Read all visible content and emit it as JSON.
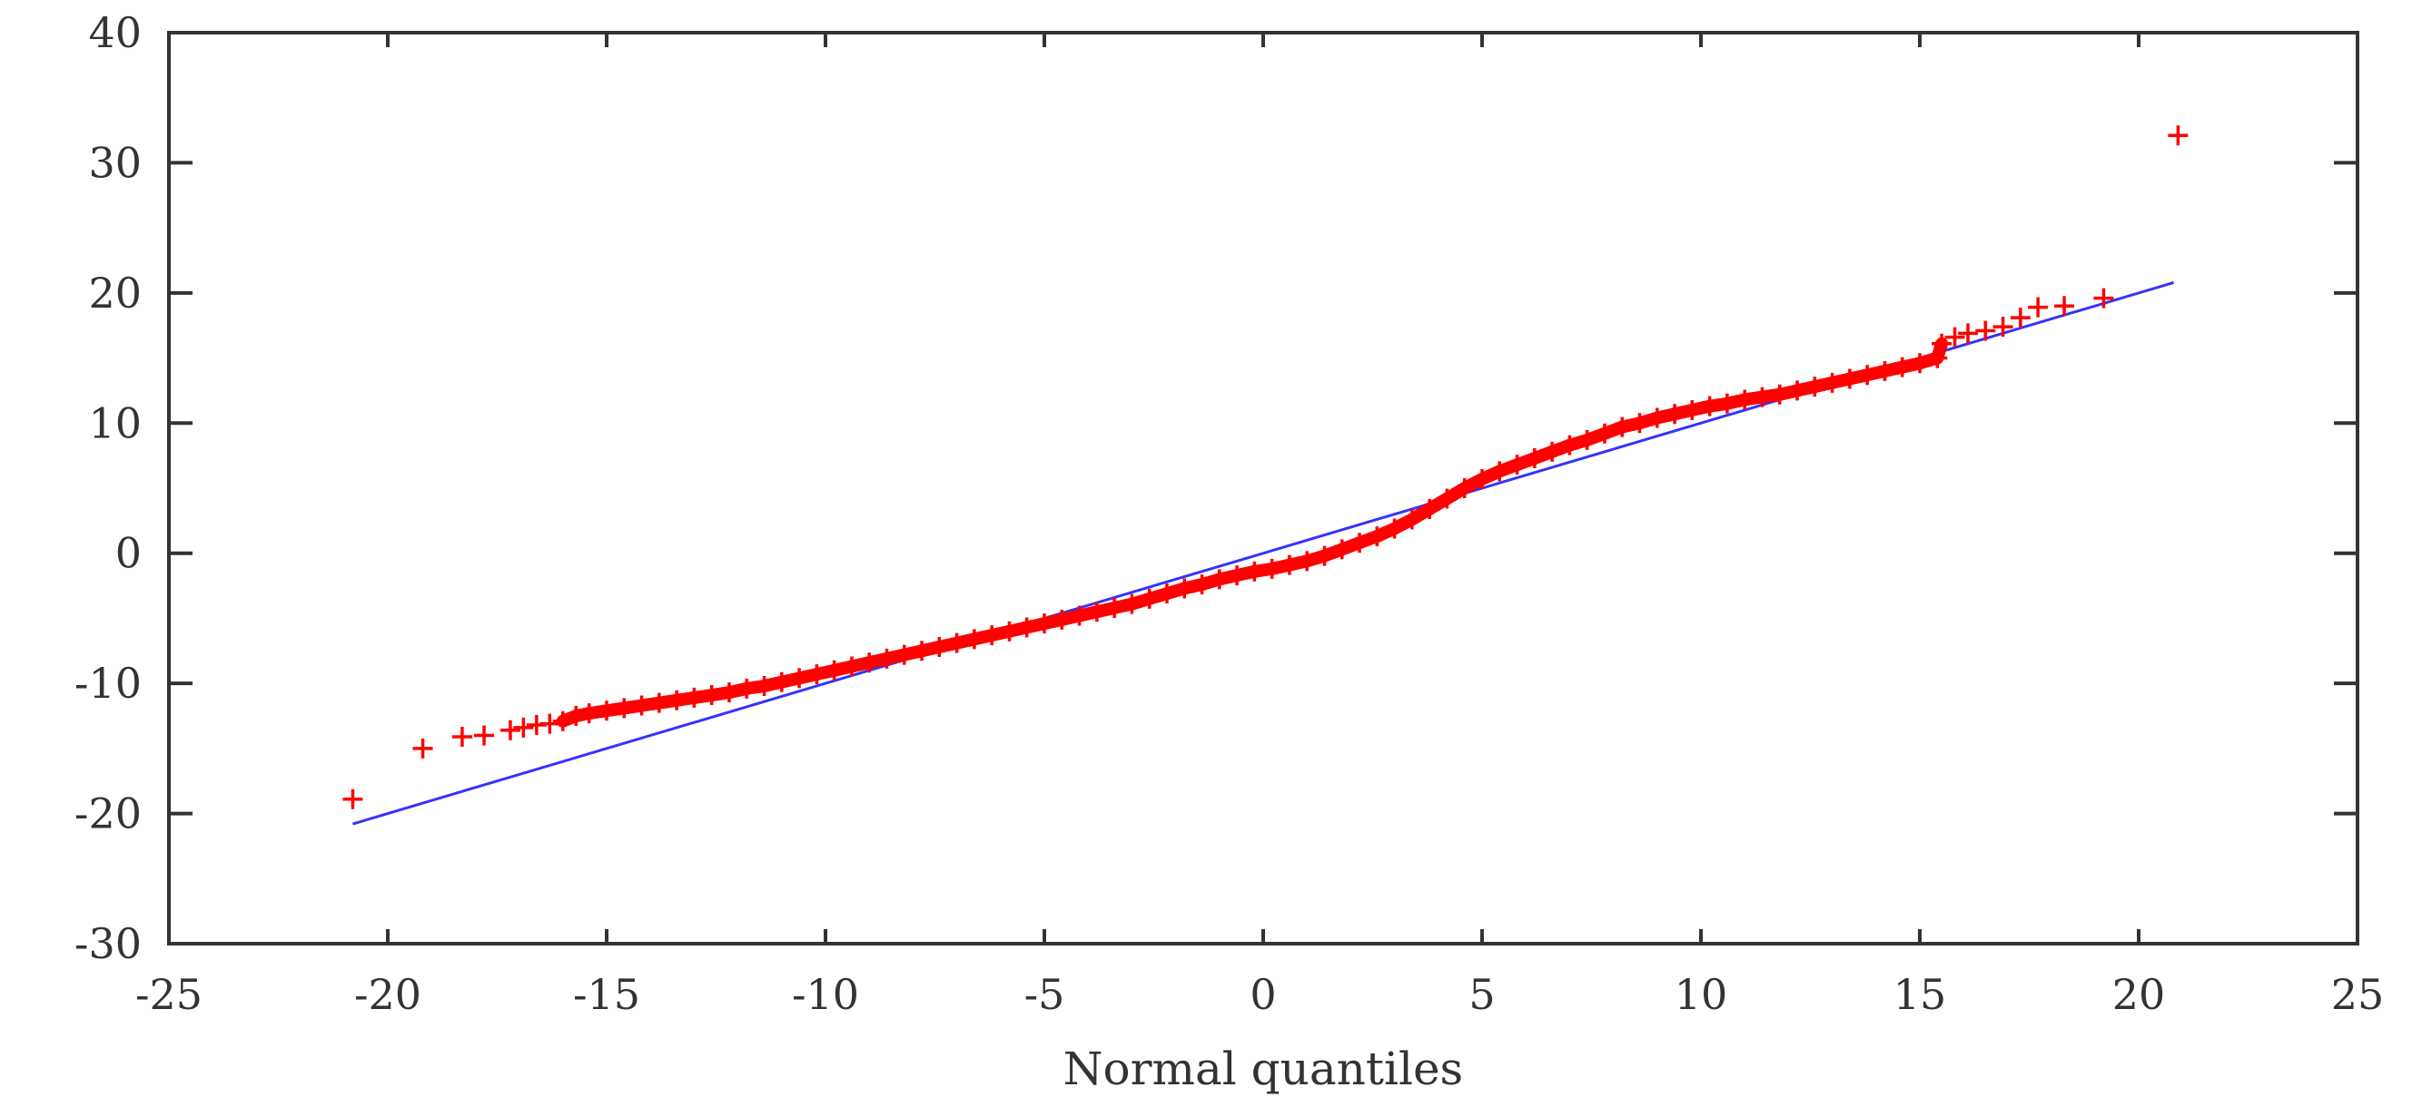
{
  "chart_data": {
    "type": "scatter",
    "title": "",
    "xlabel": "Normal quantiles",
    "ylabel": "",
    "xlim": [
      -25,
      25
    ],
    "ylim": [
      -30,
      40
    ],
    "xticks": [
      -25,
      -20,
      -15,
      -10,
      -5,
      0,
      5,
      10,
      15,
      20,
      25
    ],
    "yticks": [
      -30,
      -20,
      -10,
      0,
      10,
      20,
      30,
      40
    ],
    "xtick_labels": [
      "-25",
      "-20",
      "-15",
      "-10",
      "-5",
      "0",
      "5",
      "10",
      "15",
      "20",
      "25"
    ],
    "ytick_labels": [
      "-30",
      "-20",
      "-10",
      "0",
      "10",
      "20",
      "30",
      "40"
    ],
    "grid": false,
    "legend": "none",
    "series": [
      {
        "kind": "points",
        "marker": "plus",
        "color": "#ff0000",
        "points": [
          [
            -20.8,
            -18.9
          ],
          [
            -19.2,
            -15.0
          ],
          [
            -18.3,
            -14.1
          ],
          [
            -17.8,
            -14.0
          ],
          [
            -17.2,
            -13.6
          ],
          [
            -16.9,
            -13.4
          ],
          [
            -16.6,
            -13.2
          ],
          [
            -16.3,
            -13.1
          ],
          [
            -16.0,
            -12.9
          ],
          [
            -15.7,
            -12.5
          ],
          [
            -15.4,
            -12.3
          ],
          [
            -15.0,
            -12.1
          ],
          [
            -14.6,
            -11.9
          ],
          [
            -14.2,
            -11.7
          ],
          [
            -13.8,
            -11.5
          ],
          [
            -13.4,
            -11.3
          ],
          [
            -13.0,
            -11.1
          ],
          [
            -12.6,
            -10.9
          ],
          [
            -12.2,
            -10.7
          ],
          [
            -11.8,
            -10.4
          ],
          [
            -11.4,
            -10.2
          ],
          [
            -11.0,
            -9.9
          ],
          [
            -10.6,
            -9.6
          ],
          [
            -10.2,
            -9.3
          ],
          [
            -9.8,
            -9.0
          ],
          [
            -9.4,
            -8.7
          ],
          [
            -9.0,
            -8.4
          ],
          [
            -8.6,
            -8.1
          ],
          [
            -8.2,
            -7.8
          ],
          [
            -7.8,
            -7.5
          ],
          [
            -7.4,
            -7.2
          ],
          [
            -7.0,
            -6.9
          ],
          [
            -6.6,
            -6.6
          ],
          [
            -6.2,
            -6.3
          ],
          [
            -5.8,
            -6.0
          ],
          [
            -5.4,
            -5.7
          ],
          [
            -5.0,
            -5.4
          ],
          [
            -4.6,
            -5.1
          ],
          [
            -4.2,
            -4.8
          ],
          [
            -3.8,
            -4.5
          ],
          [
            -3.4,
            -4.2
          ],
          [
            -3.0,
            -3.9
          ],
          [
            -2.6,
            -3.5
          ],
          [
            -2.2,
            -3.1
          ],
          [
            -1.8,
            -2.7
          ],
          [
            -1.4,
            -2.4
          ],
          [
            -1.0,
            -2.0
          ],
          [
            -0.6,
            -1.7
          ],
          [
            -0.2,
            -1.4
          ],
          [
            0.2,
            -1.2
          ],
          [
            0.6,
            -0.9
          ],
          [
            1.0,
            -0.6
          ],
          [
            1.4,
            -0.2
          ],
          [
            1.8,
            0.3
          ],
          [
            2.2,
            0.8
          ],
          [
            2.6,
            1.3
          ],
          [
            3.0,
            1.9
          ],
          [
            3.4,
            2.6
          ],
          [
            3.8,
            3.4
          ],
          [
            4.2,
            4.2
          ],
          [
            4.6,
            5.0
          ],
          [
            5.0,
            5.7
          ],
          [
            5.4,
            6.3
          ],
          [
            5.8,
            6.8
          ],
          [
            6.2,
            7.3
          ],
          [
            6.6,
            7.8
          ],
          [
            7.0,
            8.3
          ],
          [
            7.4,
            8.7
          ],
          [
            7.8,
            9.2
          ],
          [
            8.2,
            9.7
          ],
          [
            8.6,
            10.0
          ],
          [
            9.0,
            10.4
          ],
          [
            9.4,
            10.7
          ],
          [
            9.8,
            11.0
          ],
          [
            10.2,
            11.3
          ],
          [
            10.6,
            11.5
          ],
          [
            11.0,
            11.8
          ],
          [
            11.4,
            12.0
          ],
          [
            11.8,
            12.2
          ],
          [
            12.2,
            12.5
          ],
          [
            12.6,
            12.8
          ],
          [
            13.0,
            13.1
          ],
          [
            13.4,
            13.4
          ],
          [
            13.8,
            13.7
          ],
          [
            14.2,
            14.0
          ],
          [
            14.6,
            14.3
          ],
          [
            15.0,
            14.6
          ],
          [
            15.4,
            15.0
          ],
          [
            15.5,
            16.1
          ],
          [
            15.8,
            16.6
          ],
          [
            16.1,
            16.9
          ],
          [
            16.5,
            17.1
          ],
          [
            16.9,
            17.4
          ],
          [
            17.3,
            18.1
          ],
          [
            17.7,
            18.9
          ],
          [
            18.3,
            19.0
          ],
          [
            19.2,
            19.6
          ],
          [
            20.9,
            32.1
          ]
        ]
      },
      {
        "kind": "line",
        "color": "#3333ff",
        "points": [
          [
            -20.8,
            -20.8
          ],
          [
            20.8,
            20.8
          ]
        ]
      }
    ]
  }
}
